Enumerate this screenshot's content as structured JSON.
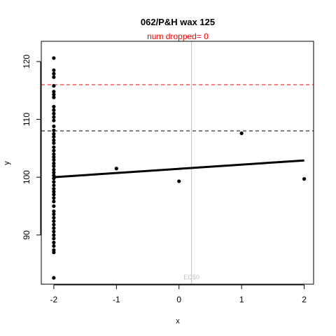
{
  "chart_data": {
    "type": "scatter",
    "title": "062/P&H wax 125",
    "subtitle": "num dropped= 0",
    "xlabel": "x",
    "ylabel": "y",
    "xlim": [
      -2.2,
      2.15
    ],
    "ylim": [
      81.5,
      123.5
    ],
    "x_ticks": [
      -2,
      -1,
      0,
      1,
      2
    ],
    "x_tick_labels": [
      "-2",
      "-1",
      "0",
      "1",
      "2"
    ],
    "y_ticks": [
      90,
      100,
      110,
      120
    ],
    "y_tick_labels": [
      "90",
      "100",
      "110",
      "120"
    ],
    "grid": false,
    "colors": {
      "points": "#000000",
      "fit_line": "#000000",
      "upper_limit": "#ff0000",
      "lower_limit": "#000000",
      "ec50_line": "#bebebe",
      "subtitle": "#ff0000"
    },
    "points": [
      {
        "x": -2,
        "y": 120.6
      },
      {
        "x": -2,
        "y": 118.5
      },
      {
        "x": -2,
        "y": 117.9
      },
      {
        "x": -2,
        "y": 117.3
      },
      {
        "x": -2,
        "y": 115.8
      },
      {
        "x": -2,
        "y": 114.8
      },
      {
        "x": -2,
        "y": 114.3
      },
      {
        "x": -2,
        "y": 113.8
      },
      {
        "x": -2,
        "y": 112.2
      },
      {
        "x": -2,
        "y": 111.6
      },
      {
        "x": -2,
        "y": 111.0
      },
      {
        "x": -2,
        "y": 110.4
      },
      {
        "x": -2,
        "y": 109.8
      },
      {
        "x": -2,
        "y": 108.8
      },
      {
        "x": -2,
        "y": 108.1
      },
      {
        "x": -2,
        "y": 107.5
      },
      {
        "x": -2,
        "y": 107.0
      },
      {
        "x": -2,
        "y": 106.4
      },
      {
        "x": -2,
        "y": 105.9
      },
      {
        "x": -2,
        "y": 105.2
      },
      {
        "x": -2,
        "y": 104.6
      },
      {
        "x": -2,
        "y": 104.0
      },
      {
        "x": -2,
        "y": 103.5
      },
      {
        "x": -2,
        "y": 103.0
      },
      {
        "x": -2,
        "y": 102.4
      },
      {
        "x": -2,
        "y": 101.9
      },
      {
        "x": -2,
        "y": 101.3
      },
      {
        "x": -2,
        "y": 100.8
      },
      {
        "x": -2,
        "y": 100.3
      },
      {
        "x": -2,
        "y": 99.8
      },
      {
        "x": -2,
        "y": 99.2
      },
      {
        "x": -2,
        "y": 98.6
      },
      {
        "x": -2,
        "y": 98.0
      },
      {
        "x": -2,
        "y": 97.5
      },
      {
        "x": -2,
        "y": 97.0
      },
      {
        "x": -2,
        "y": 96.4
      },
      {
        "x": -2,
        "y": 95.8
      },
      {
        "x": -2,
        "y": 95.0
      },
      {
        "x": -2,
        "y": 94.1
      },
      {
        "x": -2,
        "y": 93.6
      },
      {
        "x": -2,
        "y": 93.0
      },
      {
        "x": -2,
        "y": 92.4
      },
      {
        "x": -2,
        "y": 91.8
      },
      {
        "x": -2,
        "y": 91.2
      },
      {
        "x": -2,
        "y": 90.6
      },
      {
        "x": -2,
        "y": 90.0
      },
      {
        "x": -2,
        "y": 89.4
      },
      {
        "x": -2,
        "y": 88.7
      },
      {
        "x": -2,
        "y": 88.1
      },
      {
        "x": -2,
        "y": 87.4
      },
      {
        "x": -2,
        "y": 87.0
      },
      {
        "x": -2,
        "y": 82.6
      },
      {
        "x": -1,
        "y": 101.5
      },
      {
        "x": 0,
        "y": 99.3
      },
      {
        "x": 1,
        "y": 107.6
      },
      {
        "x": 2,
        "y": 99.7
      }
    ],
    "fit_line": {
      "x": [
        -2,
        2
      ],
      "y": [
        100.0,
        102.9
      ]
    },
    "reference_lines": [
      {
        "orientation": "horizontal",
        "y": 116.0,
        "style": "dashed",
        "color": "#ff0000"
      },
      {
        "orientation": "horizontal",
        "y": 108.0,
        "style": "dashed",
        "color": "#000000"
      }
    ],
    "ec50": {
      "x": 0.2,
      "label": "EC50"
    }
  }
}
